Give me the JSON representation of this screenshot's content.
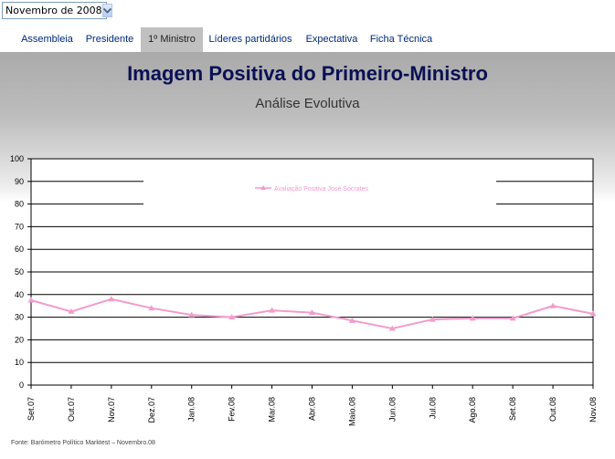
{
  "period_select": {
    "value": "Novembro de 2008",
    "icon": "chevron-down-icon"
  },
  "tabs": [
    {
      "label": "Assembleia"
    },
    {
      "label": "Presidente"
    },
    {
      "label": "1º Ministro"
    },
    {
      "label": "Líderes partidários"
    },
    {
      "label": "Expectativa"
    },
    {
      "label": "Ficha Técnica"
    }
  ],
  "active_tab": "1º Ministro",
  "page": {
    "title": "Imagem Positiva do Primeiro-Ministro",
    "subtitle": "Análise Evolutiva",
    "footer": "Fonte: Barómetro  Político  Marktest  – Novembro.08"
  },
  "colors": {
    "series": "#f29ccc",
    "title": "#0b1054",
    "tab_link": "#002b7a"
  },
  "chart_data": {
    "type": "line",
    "title": "Imagem Positiva do Primeiro-Ministro",
    "subtitle": "Análise Evolutiva",
    "categories": [
      "Set.07",
      "Out.07",
      "Nov.07",
      "Dez.07",
      "Jan.08",
      "Fev.08",
      "Mar.08",
      "Abr.08",
      "Maio.08",
      "Jun.08",
      "Jul.08",
      "Ago.08",
      "Set.08",
      "Out.08",
      "Nov.08"
    ],
    "series": [
      {
        "name": "Avaliação  Positiva  José  Sócrates",
        "values": [
          37.5,
          32.5,
          38,
          34,
          31,
          30,
          33,
          32,
          28.5,
          25,
          29,
          29.5,
          29.5,
          35,
          31.5
        ]
      }
    ],
    "y_ticks": [
      "0",
      "10",
      "20",
      "30",
      "40",
      "50",
      "60",
      "70",
      "80",
      "90",
      "100"
    ],
    "ylim": [
      0,
      100
    ],
    "grid": true,
    "legend": "top-center"
  }
}
